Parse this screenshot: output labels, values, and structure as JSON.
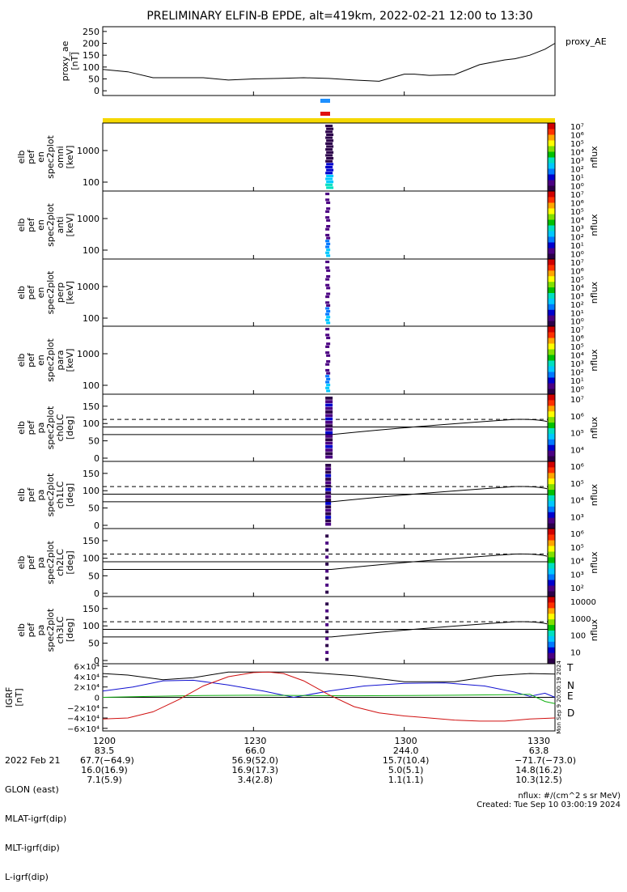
{
  "title": "PRELIMINARY ELFIN-B EPDE, alt=419km, 2022-02-21 12:00 to 13:30",
  "colors": {
    "blue_bar": "#1e90ff",
    "red_bar": "#e01010",
    "yellow_bar": "#f5d800",
    "N": "#1010d0",
    "E": "#10b010",
    "D": "#d01010",
    "T": "#000000"
  },
  "chart_data": [
    {
      "type": "line",
      "name": "proxy_ae",
      "ylabel": [
        "proxy_ae",
        "[nT]"
      ],
      "side_label": "proxy_AE",
      "yticks": [
        "250",
        "200",
        "150",
        "100",
        "50",
        "0"
      ],
      "ylim": [
        -20,
        270
      ],
      "x_min": [
        0,
        90
      ],
      "x": [
        0,
        5,
        10,
        15,
        20,
        25,
        30,
        35,
        40,
        45,
        50,
        55,
        60,
        62,
        65,
        70,
        75,
        80,
        82,
        85,
        88,
        90
      ],
      "values": [
        90,
        80,
        55,
        55,
        55,
        45,
        50,
        52,
        55,
        52,
        45,
        40,
        70,
        70,
        65,
        68,
        110,
        130,
        135,
        150,
        175,
        200
      ]
    },
    {
      "type": "heatmap",
      "ylabel": [
        "elb",
        "pef",
        "en",
        "spec2plot",
        "omni",
        "[keV]"
      ],
      "yticks": [
        "1000",
        "100"
      ],
      "cbar_ticks": [
        "10⁷",
        "10⁶",
        "10⁵",
        "10⁴",
        "10³",
        "10²",
        "10¹",
        "10⁰"
      ],
      "cbar_label": "nflux"
    },
    {
      "type": "heatmap",
      "ylabel": [
        "elb",
        "pef",
        "en",
        "spec2plot",
        "anti",
        "[keV]"
      ],
      "yticks": [
        "1000",
        "100"
      ],
      "cbar_ticks": [
        "10⁷",
        "10⁶",
        "10⁵",
        "10⁴",
        "10³",
        "10²",
        "10¹",
        "10⁰"
      ],
      "cbar_label": "nflux"
    },
    {
      "type": "heatmap",
      "ylabel": [
        "elb",
        "pef",
        "en",
        "spec2plot",
        "perp",
        "[keV]"
      ],
      "yticks": [
        "1000",
        "100"
      ],
      "cbar_ticks": [
        "10⁷",
        "10⁶",
        "10⁵",
        "10⁴",
        "10³",
        "10²",
        "10¹",
        "10⁰"
      ],
      "cbar_label": "nflux"
    },
    {
      "type": "heatmap",
      "ylabel": [
        "elb",
        "pef",
        "en",
        "spec2plot",
        "para",
        "[keV]"
      ],
      "yticks": [
        "1000",
        "100"
      ],
      "cbar_ticks": [
        "10⁷",
        "10⁶",
        "10⁵",
        "10⁴",
        "10³",
        "10²",
        "10¹",
        "10⁰"
      ],
      "cbar_label": "nflux"
    },
    {
      "type": "heatmap",
      "ylabel": [
        "elb",
        "pef",
        "pa",
        "spec2plot",
        "ch0LC",
        "[deg]"
      ],
      "yticks": [
        "150",
        "100",
        "50",
        "0"
      ],
      "cbar_ticks": [
        "10⁷",
        "10⁶",
        "10⁵",
        "10⁴"
      ],
      "cbar_label": "nflux"
    },
    {
      "type": "heatmap",
      "ylabel": [
        "elb",
        "pef",
        "pa",
        "spec2plot",
        "ch1LC",
        "[deg]"
      ],
      "yticks": [
        "150",
        "100",
        "50",
        "0"
      ],
      "cbar_ticks": [
        "10⁶",
        "10⁵",
        "10⁴",
        "10³"
      ],
      "cbar_label": "nflux"
    },
    {
      "type": "heatmap",
      "ylabel": [
        "elb",
        "pef",
        "pa",
        "spec2plot",
        "ch2LC",
        "[deg]"
      ],
      "yticks": [
        "150",
        "100",
        "50",
        "0"
      ],
      "cbar_ticks": [
        "10⁶",
        "10⁵",
        "10⁴",
        "10³",
        "10²"
      ],
      "cbar_label": "nflux"
    },
    {
      "type": "heatmap",
      "ylabel": [
        "elb",
        "pef",
        "pa",
        "spec2plot",
        "ch3LC",
        "[deg]"
      ],
      "yticks": [
        "150",
        "100",
        "50",
        "0"
      ],
      "cbar_ticks": [
        "10000",
        "1000",
        "100",
        "10"
      ],
      "cbar_label": "nflux"
    },
    {
      "type": "line",
      "name": "IGRF",
      "ylabel": [
        "IGRF",
        "[nT]"
      ],
      "yticks": [
        "6×10⁴",
        "4×10⁴",
        "2×10⁴",
        "0",
        "−2×10⁴",
        "−4×10⁴",
        "−6×10⁴"
      ],
      "ylim": [
        -65000,
        65000
      ],
      "legend": [
        "T",
        "N",
        "E",
        "D"
      ],
      "timestamp": "Mon Sep  9 20:00:19 2024",
      "series": [
        {
          "name": "T",
          "x": [
            0,
            5,
            12,
            18,
            25,
            33,
            40,
            50,
            60,
            70,
            78,
            85,
            90
          ],
          "values": [
            46000,
            43000,
            34000,
            38000,
            49000,
            49000,
            49000,
            42000,
            30000,
            30000,
            42000,
            46000,
            45000
          ]
        },
        {
          "name": "N",
          "x": [
            0,
            6,
            12,
            18,
            25,
            32,
            38,
            45,
            52,
            60,
            68,
            76,
            82,
            85,
            88,
            90
          ],
          "values": [
            12000,
            20000,
            32000,
            33000,
            24000,
            12000,
            0,
            12000,
            22000,
            27000,
            28000,
            22000,
            10000,
            2000,
            8000,
            0
          ]
        },
        {
          "name": "E",
          "x": [
            0,
            10,
            20,
            30,
            40,
            50,
            60,
            70,
            80,
            85,
            88,
            90
          ],
          "values": [
            0,
            2000,
            3500,
            4000,
            3500,
            3000,
            3500,
            4000,
            5000,
            6000,
            -8000,
            -12000
          ]
        },
        {
          "name": "D",
          "x": [
            0,
            5,
            10,
            15,
            20,
            25,
            30,
            33,
            36,
            40,
            45,
            50,
            55,
            60,
            65,
            70,
            75,
            80,
            85,
            90
          ],
          "values": [
            -42000,
            -40000,
            -28000,
            -5000,
            22000,
            40000,
            48000,
            49000,
            46000,
            32000,
            5000,
            -18000,
            -30000,
            -36000,
            -40000,
            -44000,
            -46000,
            -46000,
            -42000,
            -40000
          ]
        }
      ]
    }
  ],
  "x_axis": {
    "tick_labels": [
      "1200",
      "1230",
      "1300",
      "1330"
    ],
    "rows": [
      {
        "name": "2022 Feb 21",
        "values": [
          "1200",
          "1230",
          "1300",
          "1330"
        ]
      },
      {
        "name": "GLON (east)",
        "values": [
          "83.5",
          "66.0",
          "244.0",
          "63.8"
        ]
      },
      {
        "name": "MLAT-igrf(dip)",
        "values": [
          "67.7(−64.9)",
          "56.9(52.0)",
          "15.7(10.4)",
          "−71.7(−73.0)"
        ]
      },
      {
        "name": "MLT-igrf(dip)",
        "values": [
          "16.0(16.9)",
          "16.9(17.3)",
          "5.0(5.1)",
          "14.8(16.2)"
        ]
      },
      {
        "name": "L-igrf(dip)",
        "values": [
          "7.1(5.9)",
          "3.4(2.8)",
          "1.1(1.1)",
          "10.3(12.5)"
        ]
      }
    ]
  },
  "footer": {
    "units": "nflux: #/(cm^2 s sr MeV)",
    "created": "Created: Tue Sep 10 03:00:19 2024"
  }
}
